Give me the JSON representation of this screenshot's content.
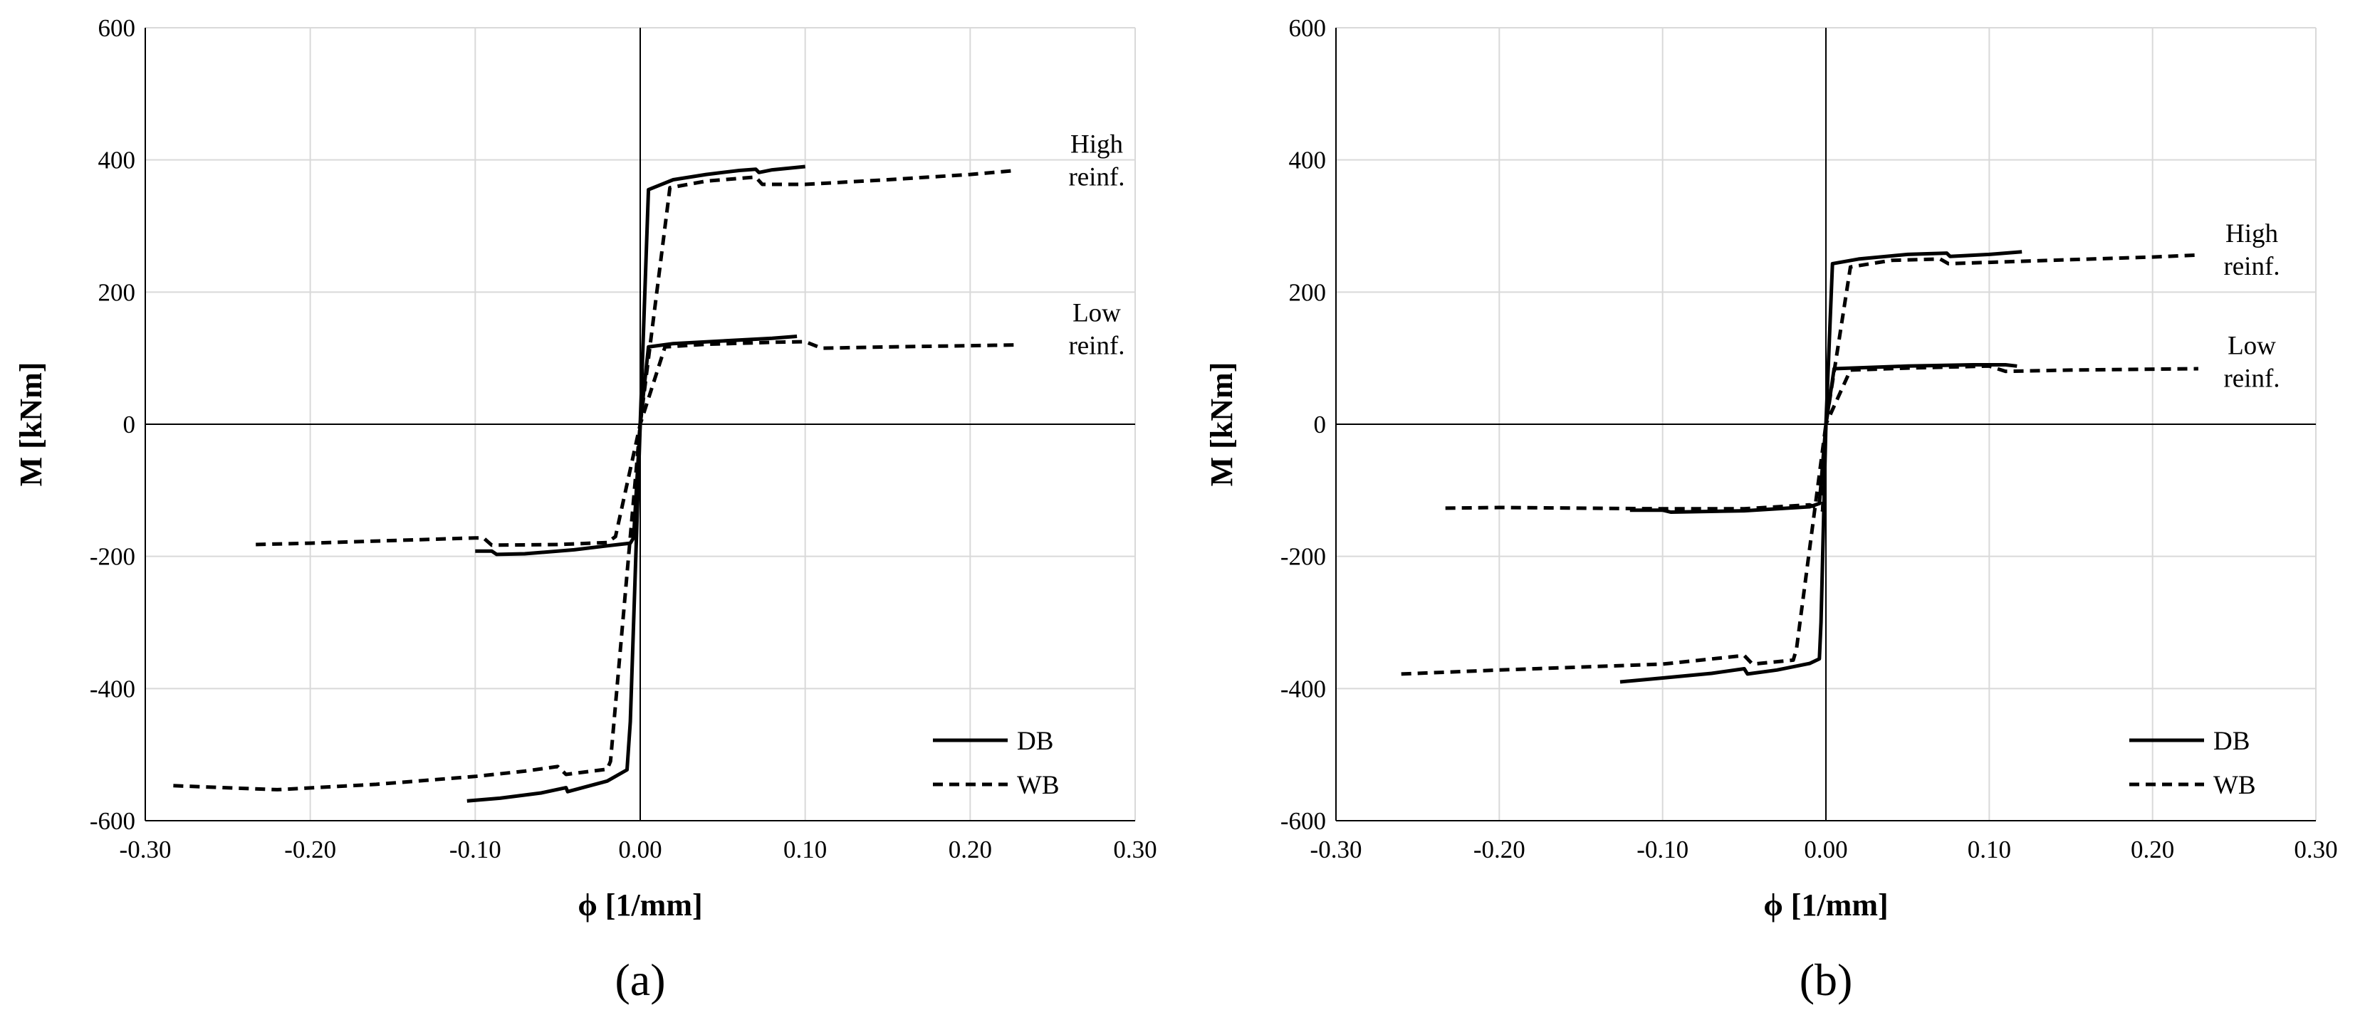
{
  "chart_data": [
    {
      "type": "line",
      "panel_label": "(a)",
      "xlabel": "ϕ [1/mm]",
      "ylabel": "M [kNm]",
      "xlim": [
        -0.3,
        0.3
      ],
      "ylim": [
        -600,
        600
      ],
      "xticks": [
        "-0.30",
        "-0.20",
        "-0.10",
        "0.00",
        "0.10",
        "0.20",
        "0.30"
      ],
      "yticks": [
        "600",
        "400",
        "200",
        "0",
        "-200",
        "-400",
        "-600"
      ],
      "grid": true,
      "legend_position": "bottom-right",
      "legend": [
        {
          "name": "DB",
          "style": "solid"
        },
        {
          "name": "WB",
          "style": "dashed"
        }
      ],
      "annotations": [
        {
          "lines": [
            "High",
            "reinf."
          ],
          "x": 0.255,
          "y": 385
        },
        {
          "lines": [
            "Low",
            "reinf."
          ],
          "x": 0.255,
          "y": 130
        }
      ],
      "series": [
        {
          "name": "DB",
          "case": "High reinf.",
          "style": "solid",
          "points": [
            [
              -0.105,
              -570
            ],
            [
              -0.085,
              -566
            ],
            [
              -0.06,
              -558
            ],
            [
              -0.045,
              -550
            ],
            [
              -0.044,
              -556
            ],
            [
              -0.02,
              -540
            ],
            [
              -0.008,
              -523
            ],
            [
              -0.006,
              -450
            ],
            [
              0.0,
              0
            ],
            [
              0.005,
              355
            ],
            [
              0.012,
              362
            ],
            [
              0.02,
              370
            ],
            [
              0.04,
              378
            ],
            [
              0.06,
              384
            ],
            [
              0.07,
              386
            ],
            [
              0.072,
              381
            ],
            [
              0.08,
              385
            ],
            [
              0.1,
              390
            ]
          ]
        },
        {
          "name": "WB",
          "case": "High reinf.",
          "style": "dashed",
          "points": [
            [
              -0.283,
              -547
            ],
            [
              -0.22,
              -553
            ],
            [
              -0.16,
              -545
            ],
            [
              -0.1,
              -533
            ],
            [
              -0.07,
              -525
            ],
            [
              -0.05,
              -518
            ],
            [
              -0.045,
              -530
            ],
            [
              -0.02,
              -522
            ],
            [
              -0.018,
              -510
            ],
            [
              0.0,
              0
            ],
            [
              0.018,
              358
            ],
            [
              0.04,
              368
            ],
            [
              0.07,
              374
            ],
            [
              0.074,
              363
            ],
            [
              0.1,
              363
            ],
            [
              0.15,
              370
            ],
            [
              0.2,
              378
            ],
            [
              0.228,
              384
            ]
          ]
        },
        {
          "name": "DB",
          "case": "Low reinf.",
          "style": "solid",
          "points": [
            [
              -0.1,
              -192
            ],
            [
              -0.09,
              -192
            ],
            [
              -0.087,
              -197
            ],
            [
              -0.07,
              -196
            ],
            [
              -0.04,
              -190
            ],
            [
              -0.02,
              -184
            ],
            [
              -0.006,
              -180
            ],
            [
              -0.004,
              -172
            ],
            [
              0.0,
              0
            ],
            [
              0.005,
              117
            ],
            [
              0.02,
              122
            ],
            [
              0.05,
              126
            ],
            [
              0.08,
              130
            ],
            [
              0.095,
              133
            ]
          ]
        },
        {
          "name": "WB",
          "case": "Low reinf.",
          "style": "dashed",
          "points": [
            [
              -0.233,
              -182
            ],
            [
              -0.2,
              -180
            ],
            [
              -0.1,
              -172
            ],
            [
              -0.095,
              -172
            ],
            [
              -0.09,
              -183
            ],
            [
              -0.05,
              -182
            ],
            [
              -0.02,
              -179
            ],
            [
              -0.015,
              -170
            ],
            [
              0.0,
              0
            ],
            [
              0.015,
              117
            ],
            [
              0.04,
              121
            ],
            [
              0.08,
              124
            ],
            [
              0.1,
              125
            ],
            [
              0.11,
              115
            ],
            [
              0.15,
              117
            ],
            [
              0.228,
              120
            ]
          ]
        }
      ]
    },
    {
      "type": "line",
      "panel_label": "(b)",
      "xlabel": "ϕ [1/mm]",
      "ylabel": "M [kNm]",
      "xlim": [
        -0.3,
        0.3
      ],
      "ylim": [
        -600,
        600
      ],
      "xticks": [
        "-0.30",
        "-0.20",
        "-0.10",
        "0.00",
        "0.10",
        "0.20",
        "0.30"
      ],
      "yticks": [
        "600",
        "400",
        "200",
        "0",
        "-200",
        "-400",
        "-600"
      ],
      "grid": true,
      "legend_position": "bottom-right",
      "legend": [
        {
          "name": "DB",
          "style": "solid"
        },
        {
          "name": "WB",
          "style": "dashed"
        }
      ],
      "annotations": [
        {
          "lines": [
            "High",
            "reinf."
          ],
          "x": 0.255,
          "y": 250
        },
        {
          "lines": [
            "Low",
            "reinf."
          ],
          "x": 0.255,
          "y": 80
        }
      ],
      "series": [
        {
          "name": "DB",
          "case": "High reinf.",
          "style": "solid",
          "points": [
            [
              -0.126,
              -390
            ],
            [
              -0.1,
              -384
            ],
            [
              -0.07,
              -377
            ],
            [
              -0.05,
              -370
            ],
            [
              -0.048,
              -378
            ],
            [
              -0.03,
              -372
            ],
            [
              -0.01,
              -362
            ],
            [
              -0.004,
              -355
            ],
            [
              -0.003,
              -300
            ],
            [
              0.0,
              0
            ],
            [
              0.004,
              243
            ],
            [
              0.02,
              250
            ],
            [
              0.05,
              257
            ],
            [
              0.074,
              259
            ],
            [
              0.076,
              254
            ],
            [
              0.1,
              257
            ],
            [
              0.12,
              261
            ]
          ]
        },
        {
          "name": "WB",
          "case": "High reinf.",
          "style": "dashed",
          "points": [
            [
              -0.26,
              -378
            ],
            [
              -0.2,
              -372
            ],
            [
              -0.1,
              -363
            ],
            [
              -0.05,
              -350
            ],
            [
              -0.045,
              -363
            ],
            [
              -0.02,
              -357
            ],
            [
              -0.018,
              -340
            ],
            [
              0.0,
              0
            ],
            [
              0.015,
              238
            ],
            [
              0.04,
              248
            ],
            [
              0.07,
              250
            ],
            [
              0.075,
              243
            ],
            [
              0.1,
              245
            ],
            [
              0.15,
              249
            ],
            [
              0.2,
              253
            ],
            [
              0.228,
              256
            ]
          ]
        },
        {
          "name": "DB",
          "case": "Low reinf.",
          "style": "solid",
          "points": [
            [
              -0.12,
              -130
            ],
            [
              -0.1,
              -130
            ],
            [
              -0.095,
              -133
            ],
            [
              -0.05,
              -131
            ],
            [
              -0.01,
              -125
            ],
            [
              -0.004,
              -120
            ],
            [
              0.0,
              0
            ],
            [
              0.005,
              84
            ],
            [
              0.05,
              88
            ],
            [
              0.09,
              90
            ],
            [
              0.11,
              90
            ],
            [
              0.117,
              88
            ]
          ]
        },
        {
          "name": "WB",
          "case": "Low reinf.",
          "style": "dashed",
          "points": [
            [
              -0.233,
              -127
            ],
            [
              -0.2,
              -126
            ],
            [
              -0.1,
              -128
            ],
            [
              -0.05,
              -128
            ],
            [
              -0.01,
              -122
            ],
            [
              -0.002,
              -130
            ],
            [
              0.0,
              0
            ],
            [
              0.015,
              82
            ],
            [
              0.05,
              85
            ],
            [
              0.1,
              88
            ],
            [
              0.11,
              80
            ],
            [
              0.15,
              82
            ],
            [
              0.228,
              84
            ]
          ]
        }
      ]
    }
  ]
}
